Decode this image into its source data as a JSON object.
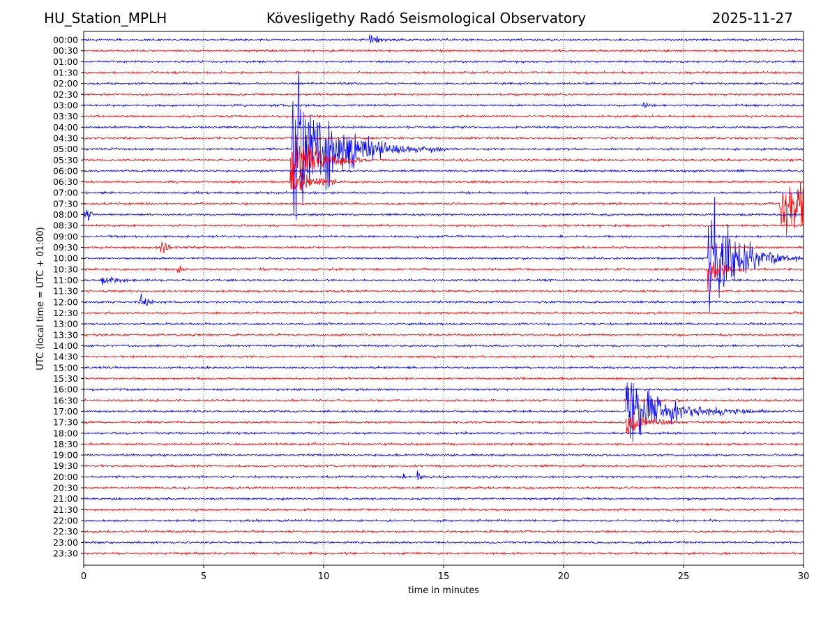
{
  "header": {
    "station": "HU_Station_MPLH",
    "title": "Kövesligethy Radó Seismological Observatory",
    "date": "2025-11-27"
  },
  "chart_data": {
    "type": "line",
    "subtype": "helicorder",
    "xlabel": "time in minutes",
    "ylabel": "UTC (local time = UTC + 01:00)",
    "xlim": [
      0,
      30
    ],
    "xticks": [
      0,
      5,
      10,
      15,
      20,
      25,
      30
    ],
    "grid": "vertical dotted at x ticks",
    "trace_colors": [
      "#0000ff",
      "#ff0000"
    ],
    "rows": [
      "00:00",
      "00:30",
      "01:00",
      "01:30",
      "02:00",
      "02:30",
      "03:00",
      "03:30",
      "04:00",
      "04:30",
      "05:00",
      "05:30",
      "06:00",
      "06:30",
      "07:00",
      "07:30",
      "08:00",
      "08:30",
      "09:00",
      "09:30",
      "10:00",
      "10:30",
      "11:00",
      "11:30",
      "12:00",
      "12:30",
      "13:00",
      "13:30",
      "14:00",
      "14:30",
      "15:00",
      "15:30",
      "16:00",
      "16:30",
      "17:00",
      "17:30",
      "18:00",
      "18:30",
      "19:00",
      "19:30",
      "20:00",
      "20:30",
      "21:00",
      "21:30",
      "22:00",
      "22:30",
      "23:00",
      "23:30"
    ],
    "events": [
      {
        "row": "00:00",
        "start_min": 11.9,
        "peak_amp": 0.6,
        "duration_min": 1.8,
        "decay": 0.5
      },
      {
        "row": "03:00",
        "start_min": 23.3,
        "peak_amp": 0.4,
        "duration_min": 0.5,
        "decay": 0.3
      },
      {
        "row": "05:00",
        "start_min": 8.7,
        "peak_amp": 9.5,
        "duration_min": 6.5,
        "decay": 1.6
      },
      {
        "row": "05:30",
        "start_min": 8.6,
        "peak_amp": 4.5,
        "duration_min": 3.0,
        "decay": 1.0
      },
      {
        "row": "06:30",
        "start_min": 8.6,
        "peak_amp": 2.0,
        "duration_min": 2.0,
        "decay": 0.8
      },
      {
        "row": "07:30",
        "start_min": 29.0,
        "peak_amp": 3.5,
        "duration_min": 1.0,
        "decay": 3.0
      },
      {
        "row": "08:00",
        "start_min": 0.0,
        "peak_amp": 1.4,
        "duration_min": 0.4,
        "decay": 0.3
      },
      {
        "row": "09:30",
        "start_min": 3.2,
        "peak_amp": 1.5,
        "duration_min": 0.4,
        "decay": 0.2
      },
      {
        "row": "10:00",
        "start_min": 26.0,
        "peak_amp": 9.0,
        "duration_min": 4.0,
        "decay": 1.0
      },
      {
        "row": "10:30",
        "start_min": 3.9,
        "peak_amp": 1.1,
        "duration_min": 0.4,
        "decay": 0.2
      },
      {
        "row": "10:30",
        "start_min": 26.0,
        "peak_amp": 2.0,
        "duration_min": 1.5,
        "decay": 0.6
      },
      {
        "row": "11:00",
        "start_min": 0.7,
        "peak_amp": 0.6,
        "duration_min": 1.5,
        "decay": 0.6
      },
      {
        "row": "12:00",
        "start_min": 2.3,
        "peak_amp": 1.4,
        "duration_min": 0.6,
        "decay": 0.3
      },
      {
        "row": "17:00",
        "start_min": 22.6,
        "peak_amp": 5.0,
        "duration_min": 6.0,
        "decay": 1.4
      },
      {
        "row": "17:30",
        "start_min": 22.6,
        "peak_amp": 1.6,
        "duration_min": 2.0,
        "decay": 0.8
      },
      {
        "row": "20:00",
        "start_min": 13.3,
        "peak_amp": 0.7,
        "duration_min": 0.3,
        "decay": 0.1
      },
      {
        "row": "20:00",
        "start_min": 13.9,
        "peak_amp": 1.1,
        "duration_min": 0.3,
        "decay": 0.1
      }
    ]
  }
}
